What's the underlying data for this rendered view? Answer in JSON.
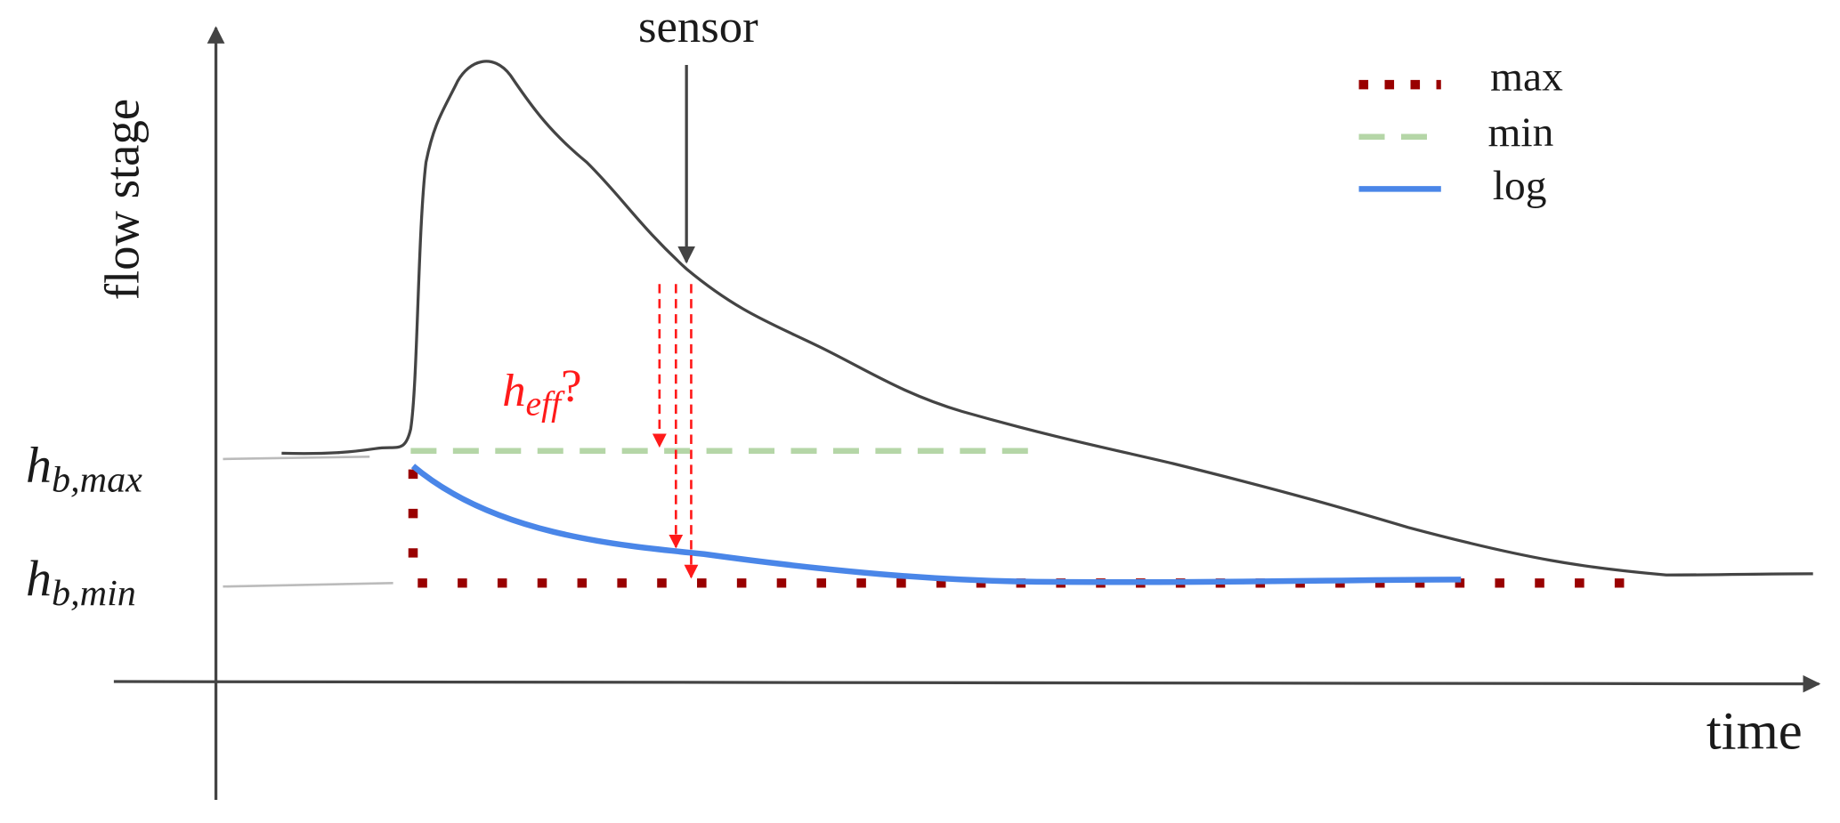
{
  "axes": {
    "y_label": "flow stage",
    "x_label": "time"
  },
  "annotations": {
    "sensor": "sensor",
    "h_max": {
      "symbol": "h",
      "subscript": "b,max"
    },
    "h_min": {
      "symbol": "h",
      "subscript": "b,min"
    },
    "h_eff": {
      "symbol": "h",
      "subscript": "eff",
      "suffix": "?"
    }
  },
  "legend": [
    {
      "label": "max"
    },
    {
      "label": "min"
    },
    {
      "label": "log"
    }
  ]
}
